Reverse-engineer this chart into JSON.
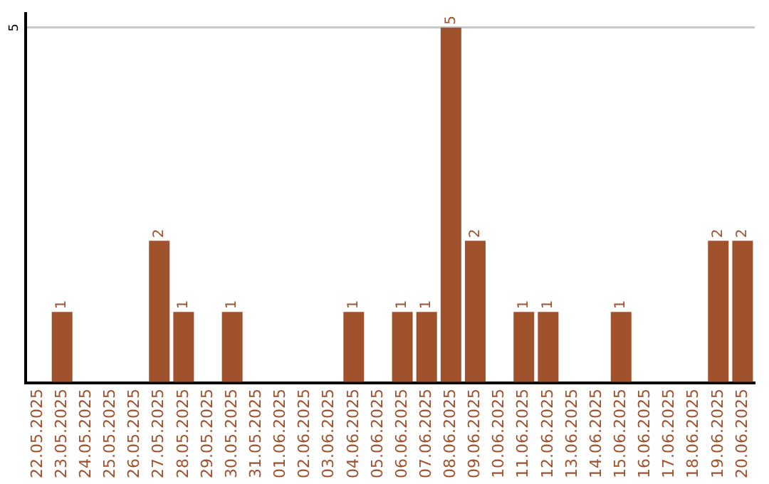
{
  "chart_data": {
    "type": "bar",
    "categories": [
      "22.05.2025",
      "23.05.2025",
      "24.05.2025",
      "25.05.2025",
      "26.05.2025",
      "27.05.2025",
      "28.05.2025",
      "29.05.2025",
      "30.05.2025",
      "31.05.2025",
      "01.06.2025",
      "02.06.2025",
      "03.06.2025",
      "04.06.2025",
      "05.06.2025",
      "06.06.2025",
      "07.06.2025",
      "08.06.2025",
      "09.06.2025",
      "10.06.2025",
      "11.06.2025",
      "12.06.2025",
      "13.06.2025",
      "14.06.2025",
      "15.06.2025",
      "16.06.2025",
      "17.06.2025",
      "18.06.2025",
      "19.06.2025",
      "20.06.2025"
    ],
    "values": [
      0,
      1,
      0,
      0,
      0,
      2,
      1,
      0,
      1,
      0,
      0,
      0,
      0,
      1,
      0,
      1,
      1,
      5,
      2,
      0,
      1,
      1,
      0,
      0,
      1,
      0,
      0,
      0,
      2,
      2
    ],
    "value_labels": [
      null,
      "1",
      null,
      null,
      null,
      "2",
      "1",
      null,
      "1",
      null,
      null,
      null,
      null,
      "1",
      null,
      "1",
      "1",
      "5",
      "2",
      null,
      "1",
      "1",
      null,
      null,
      "1",
      null,
      null,
      null,
      "2",
      "2"
    ],
    "color": "#a0522d",
    "ylim": [
      0,
      5.2
    ],
    "yticks": [
      {
        "value": 0,
        "label": null
      },
      5
    ],
    "grid": "y",
    "legend": false
  }
}
